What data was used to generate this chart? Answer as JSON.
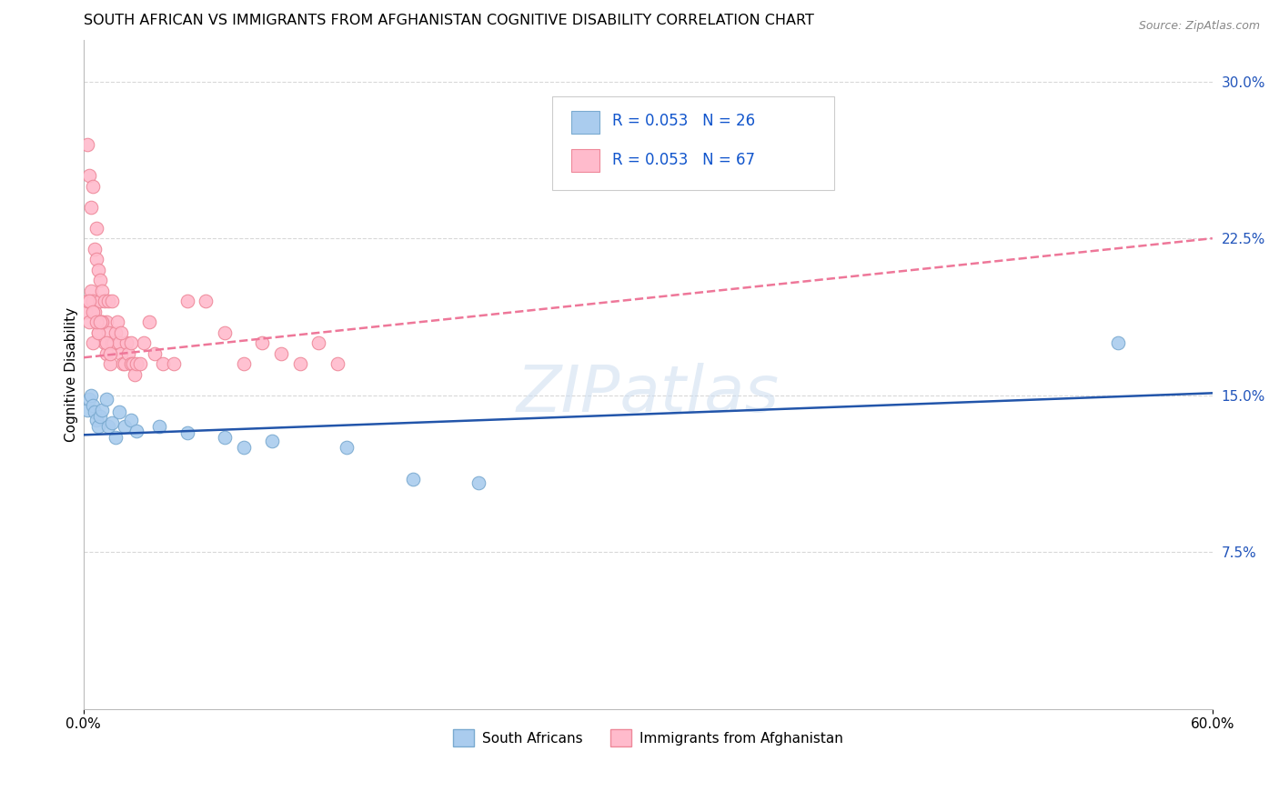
{
  "title": "SOUTH AFRICAN VS IMMIGRANTS FROM AFGHANISTAN COGNITIVE DISABILITY CORRELATION CHART",
  "source": "Source: ZipAtlas.com",
  "ylabel": "Cognitive Disability",
  "xlim": [
    0.0,
    0.6
  ],
  "ylim": [
    0.0,
    0.32
  ],
  "yticks": [
    0.075,
    0.15,
    0.225,
    0.3
  ],
  "ytick_labels": [
    "7.5%",
    "15.0%",
    "22.5%",
    "30.0%"
  ],
  "xtick_labels": [
    "0.0%",
    "60.0%"
  ],
  "background_color": "#ffffff",
  "grid_color": "#d8d8d8",
  "watermark_text": "ZIPatlas",
  "series": [
    {
      "name": "South Africans",
      "R": 0.053,
      "N": 26,
      "dot_color": "#aaccee",
      "dot_edge_color": "#7aaad0",
      "line_color": "#2255aa",
      "line_style": "-",
      "trend_x0": 0.0,
      "trend_y0": 0.131,
      "trend_x1": 0.6,
      "trend_y1": 0.151,
      "x": [
        0.002,
        0.003,
        0.004,
        0.005,
        0.006,
        0.007,
        0.008,
        0.009,
        0.01,
        0.012,
        0.013,
        0.015,
        0.017,
        0.019,
        0.022,
        0.025,
        0.028,
        0.04,
        0.055,
        0.075,
        0.085,
        0.1,
        0.14,
        0.175,
        0.21,
        0.55
      ],
      "y": [
        0.143,
        0.148,
        0.15,
        0.145,
        0.142,
        0.138,
        0.135,
        0.14,
        0.143,
        0.148,
        0.135,
        0.137,
        0.13,
        0.142,
        0.135,
        0.138,
        0.133,
        0.135,
        0.132,
        0.13,
        0.125,
        0.128,
        0.125,
        0.11,
        0.108,
        0.175
      ]
    },
    {
      "name": "Immigrants from Afghanistan",
      "R": 0.053,
      "N": 67,
      "dot_color": "#ffbbcc",
      "dot_edge_color": "#ee8899",
      "line_color": "#ee7799",
      "line_style": "--",
      "trend_x0": 0.0,
      "trend_y0": 0.168,
      "trend_x1": 0.6,
      "trend_y1": 0.225,
      "x": [
        0.001,
        0.002,
        0.002,
        0.003,
        0.003,
        0.004,
        0.004,
        0.005,
        0.005,
        0.006,
        0.006,
        0.007,
        0.007,
        0.008,
        0.008,
        0.009,
        0.009,
        0.01,
        0.01,
        0.011,
        0.011,
        0.012,
        0.012,
        0.013,
        0.013,
        0.014,
        0.015,
        0.016,
        0.017,
        0.018,
        0.019,
        0.02,
        0.021,
        0.022,
        0.023,
        0.024,
        0.025,
        0.026,
        0.027,
        0.028,
        0.03,
        0.032,
        0.035,
        0.038,
        0.042,
        0.048,
        0.055,
        0.065,
        0.075,
        0.085,
        0.095,
        0.105,
        0.115,
        0.125,
        0.135,
        0.005,
        0.008,
        0.01,
        0.012,
        0.014,
        0.003,
        0.005,
        0.007,
        0.009,
        0.015,
        0.02,
        0.025
      ],
      "y": [
        0.19,
        0.195,
        0.27,
        0.185,
        0.255,
        0.2,
        0.24,
        0.195,
        0.25,
        0.19,
        0.22,
        0.215,
        0.23,
        0.18,
        0.21,
        0.195,
        0.205,
        0.185,
        0.2,
        0.175,
        0.195,
        0.17,
        0.185,
        0.18,
        0.195,
        0.165,
        0.175,
        0.175,
        0.18,
        0.185,
        0.175,
        0.17,
        0.165,
        0.165,
        0.175,
        0.17,
        0.165,
        0.165,
        0.16,
        0.165,
        0.165,
        0.175,
        0.185,
        0.17,
        0.165,
        0.165,
        0.195,
        0.195,
        0.18,
        0.165,
        0.175,
        0.17,
        0.165,
        0.175,
        0.165,
        0.175,
        0.18,
        0.185,
        0.175,
        0.17,
        0.195,
        0.19,
        0.185,
        0.185,
        0.195,
        0.18,
        0.175
      ]
    }
  ],
  "title_fontsize": 11.5,
  "axis_label_fontsize": 11,
  "tick_fontsize": 11,
  "legend_fontsize": 12
}
